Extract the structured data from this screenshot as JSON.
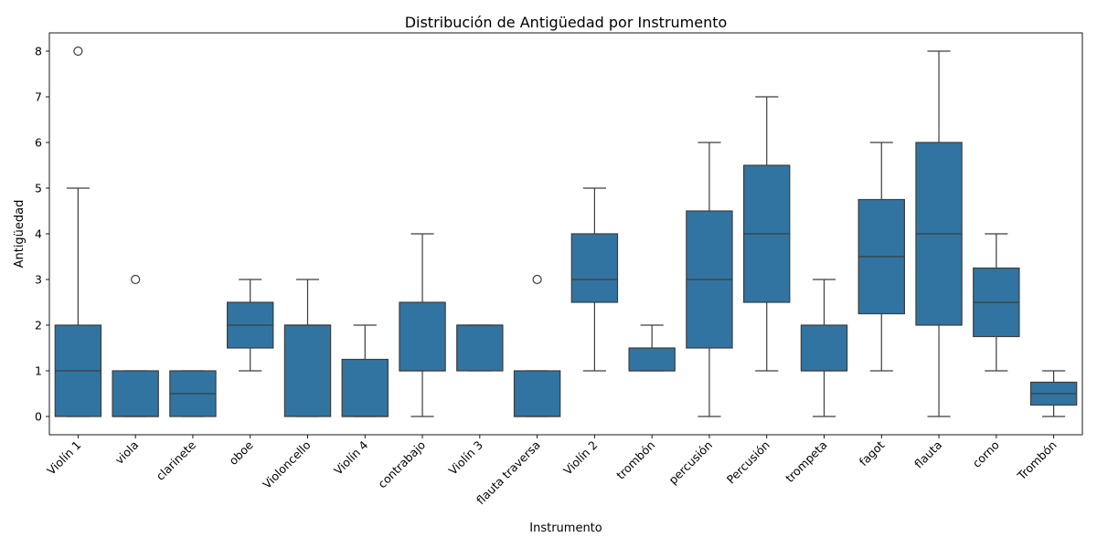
{
  "chart_data": {
    "type": "box",
    "title": "Distribución de Antigüedad por Instrumento",
    "xlabel": "Instrumento",
    "ylabel": "Antigüedad",
    "ylim": [
      -0.4,
      8.4
    ],
    "yticks": [
      0,
      1,
      2,
      3,
      4,
      5,
      6,
      7,
      8
    ],
    "grid": false,
    "box_color": "#3274a1",
    "line_color": "#3d3d3d",
    "categories": [
      "Violín 1",
      "viola",
      "clarinete",
      "oboe",
      "Violoncello",
      "Violín 4",
      "contrabajo",
      "Violín 3",
      "flauta traversa",
      "Violín 2",
      "trombón",
      "percusión",
      "Percusión",
      "trompeta",
      "fagot",
      "flauta",
      "corno",
      "Trombón"
    ],
    "boxes": [
      {
        "whisker_low": 0,
        "q1": 0,
        "median": 1,
        "q3": 2,
        "whisker_high": 5,
        "outliers": [
          8
        ]
      },
      {
        "whisker_low": 0,
        "q1": 0,
        "median": 0,
        "q3": 1,
        "whisker_high": 1,
        "outliers": [
          3
        ]
      },
      {
        "whisker_low": 0,
        "q1": 0,
        "median": 0.5,
        "q3": 1,
        "whisker_high": 1,
        "outliers": []
      },
      {
        "whisker_low": 1,
        "q1": 1.5,
        "median": 2,
        "q3": 2.5,
        "whisker_high": 3,
        "outliers": []
      },
      {
        "whisker_low": 0,
        "q1": 0,
        "median": 2,
        "q3": 2,
        "whisker_high": 3,
        "outliers": []
      },
      {
        "whisker_low": 0,
        "q1": 0,
        "median": 0,
        "q3": 1.25,
        "whisker_high": 2,
        "outliers": []
      },
      {
        "whisker_low": 0,
        "q1": 1,
        "median": 1,
        "q3": 2.5,
        "whisker_high": 4,
        "outliers": []
      },
      {
        "whisker_low": 1,
        "q1": 1,
        "median": 2,
        "q3": 2,
        "whisker_high": 2,
        "outliers": []
      },
      {
        "whisker_low": 0,
        "q1": 0,
        "median": 0,
        "q3": 1,
        "whisker_high": 1,
        "outliers": [
          3
        ]
      },
      {
        "whisker_low": 1,
        "q1": 2.5,
        "median": 3,
        "q3": 4,
        "whisker_high": 5,
        "outliers": []
      },
      {
        "whisker_low": 1,
        "q1": 1,
        "median": 1,
        "q3": 1.5,
        "whisker_high": 2,
        "outliers": []
      },
      {
        "whisker_low": 0,
        "q1": 1.5,
        "median": 3,
        "q3": 4.5,
        "whisker_high": 6,
        "outliers": []
      },
      {
        "whisker_low": 1,
        "q1": 2.5,
        "median": 4,
        "q3": 5.5,
        "whisker_high": 7,
        "outliers": []
      },
      {
        "whisker_low": 0,
        "q1": 1,
        "median": 1,
        "q3": 2,
        "whisker_high": 3,
        "outliers": []
      },
      {
        "whisker_low": 1,
        "q1": 2.25,
        "median": 3.5,
        "q3": 4.75,
        "whisker_high": 6,
        "outliers": []
      },
      {
        "whisker_low": 0,
        "q1": 2,
        "median": 4,
        "q3": 6,
        "whisker_high": 8,
        "outliers": []
      },
      {
        "whisker_low": 1,
        "q1": 1.75,
        "median": 2.5,
        "q3": 3.25,
        "whisker_high": 4,
        "outliers": []
      },
      {
        "whisker_low": 0,
        "q1": 0.25,
        "median": 0.5,
        "q3": 0.75,
        "whisker_high": 1,
        "outliers": []
      }
    ]
  }
}
